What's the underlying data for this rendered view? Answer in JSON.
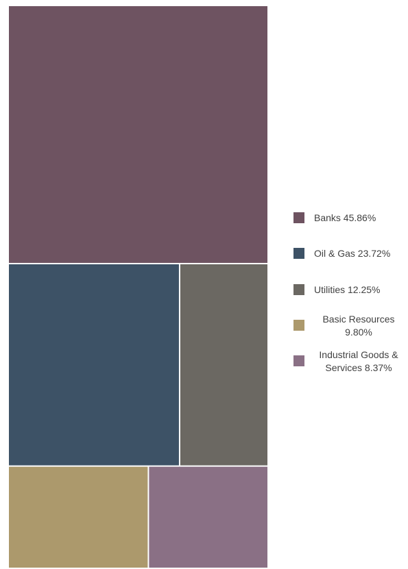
{
  "chart_data": {
    "type": "treemap",
    "title": "",
    "legend_position": "right",
    "categories": [
      {
        "name": "Banks",
        "value": 45.86,
        "label_lines": [
          "Banks 45.86%"
        ],
        "color": "#6e5361"
      },
      {
        "name": "Oil & Gas",
        "value": 23.72,
        "label_lines": [
          "Oil & Gas 23.72%"
        ],
        "color": "#3d5266"
      },
      {
        "name": "Utilities",
        "value": 12.25,
        "label_lines": [
          "Utilities 12.25%"
        ],
        "color": "#6b6862"
      },
      {
        "name": "Basic Resources",
        "value": 9.8,
        "label_lines": [
          "Basic Resources",
          "9.80%"
        ],
        "color": "#ac996c"
      },
      {
        "name": "Industrial Goods & Services",
        "value": 8.37,
        "label_lines": [
          "Industrial Goods &",
          "Services 8.37%"
        ],
        "color": "#8a7085"
      }
    ]
  }
}
